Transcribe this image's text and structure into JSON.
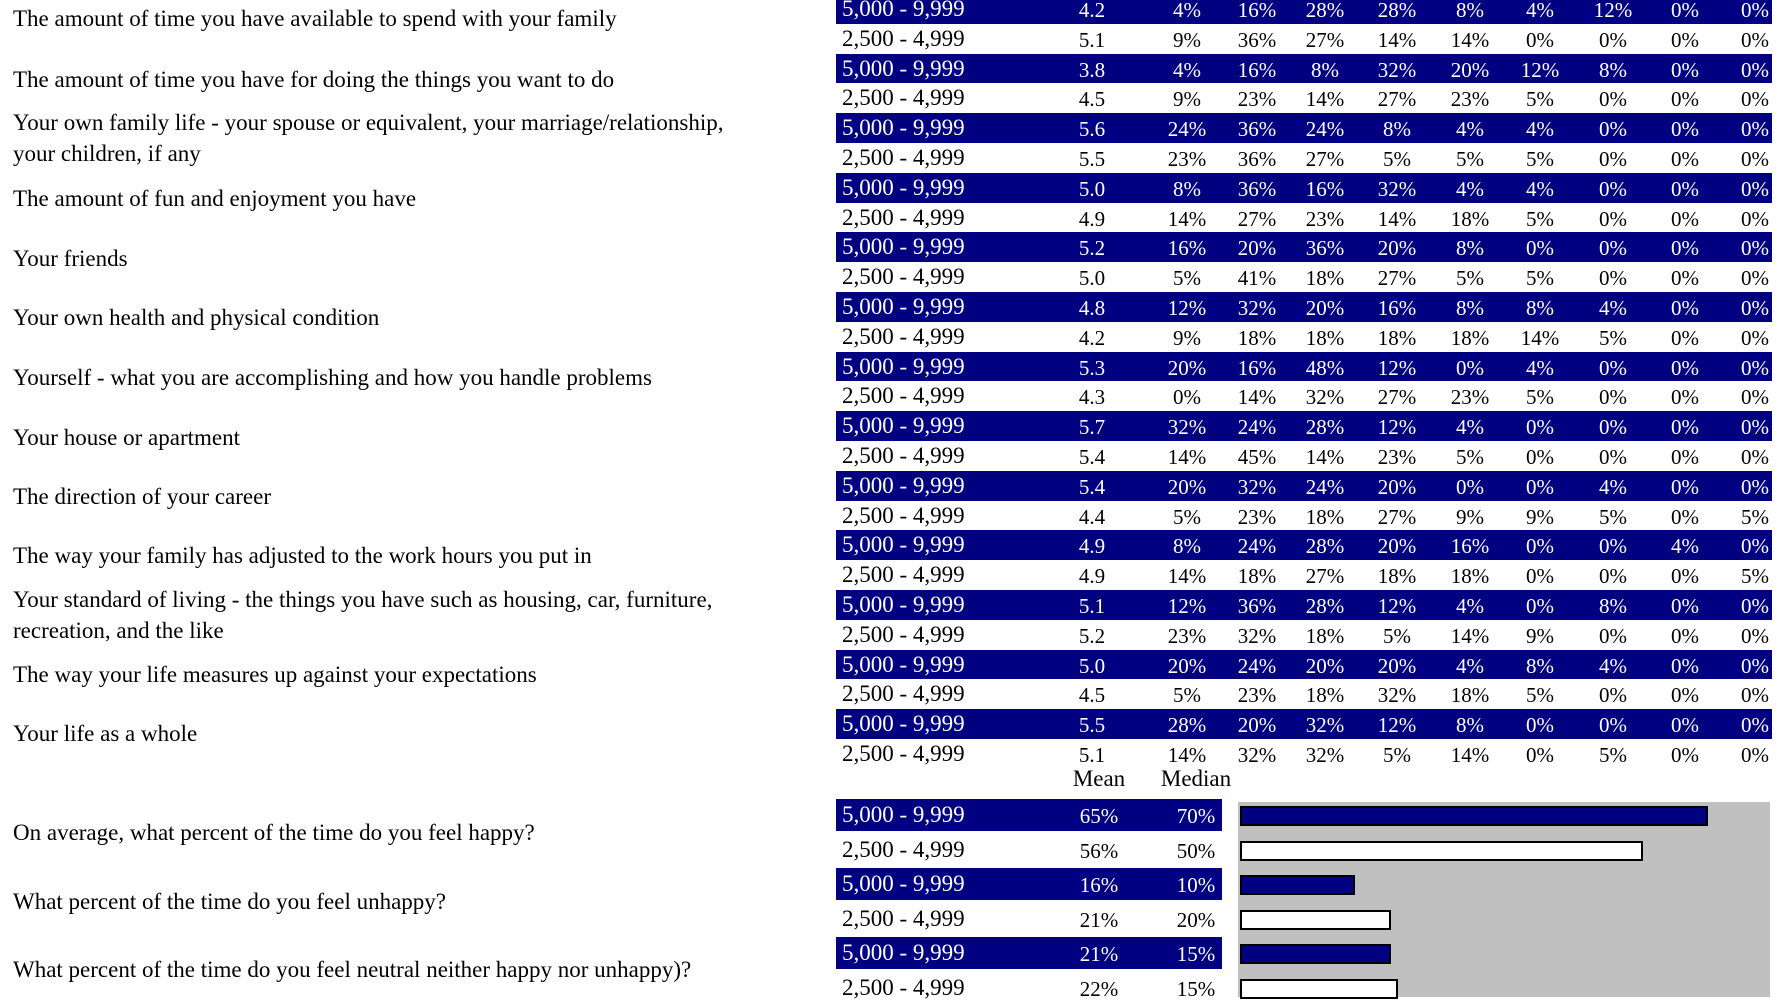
{
  "questions": [
    "The amount of time you have available to spend with your family",
    "The amount of time you have for doing the things you want to do",
    "Your own family life - your spouse or equivalent, your marriage/relationship,",
    "your children, if any",
    "The amount of fun and enjoyment you have",
    "Your friends",
    "Your own health and physical condition",
    "Yourself - what you are accomplishing and how you handle problems",
    "Your house or apartment",
    "The direction of your career",
    "The way your family has adjusted to the work hours you put in",
    "Your standard of living - the things you have such as housing, car, furniture,",
    "recreation, and the like",
    "The way your life measures up against your expectations",
    "Your life as a whole"
  ],
  "rows": [
    [
      "5,000 - 9,999",
      "4.2",
      "4%",
      "16%",
      "28%",
      "28%",
      "8%",
      "4%",
      "12%",
      "0%",
      "0%"
    ],
    [
      "2,500 - 4,999",
      "5.1",
      "9%",
      "36%",
      "27%",
      "14%",
      "14%",
      "0%",
      "0%",
      "0%",
      "0%"
    ],
    [
      "5,000 - 9,999",
      "3.8",
      "4%",
      "16%",
      "8%",
      "32%",
      "20%",
      "12%",
      "8%",
      "0%",
      "0%"
    ],
    [
      "2,500 - 4,999",
      "4.5",
      "9%",
      "23%",
      "14%",
      "27%",
      "23%",
      "5%",
      "0%",
      "0%",
      "0%"
    ],
    [
      "5,000 - 9,999",
      "5.6",
      "24%",
      "36%",
      "24%",
      "8%",
      "4%",
      "4%",
      "0%",
      "0%",
      "0%"
    ],
    [
      "2,500 - 4,999",
      "5.5",
      "23%",
      "36%",
      "27%",
      "5%",
      "5%",
      "5%",
      "0%",
      "0%",
      "0%"
    ],
    [
      "5,000 - 9,999",
      "5.0",
      "8%",
      "36%",
      "16%",
      "32%",
      "4%",
      "4%",
      "0%",
      "0%",
      "0%"
    ],
    [
      "2,500 - 4,999",
      "4.9",
      "14%",
      "27%",
      "23%",
      "14%",
      "18%",
      "5%",
      "0%",
      "0%",
      "0%"
    ],
    [
      "5,000 - 9,999",
      "5.2",
      "16%",
      "20%",
      "36%",
      "20%",
      "8%",
      "0%",
      "0%",
      "0%",
      "0%"
    ],
    [
      "2,500 - 4,999",
      "5.0",
      "5%",
      "41%",
      "18%",
      "27%",
      "5%",
      "5%",
      "0%",
      "0%",
      "0%"
    ],
    [
      "5,000 - 9,999",
      "4.8",
      "12%",
      "32%",
      "20%",
      "16%",
      "8%",
      "8%",
      "4%",
      "0%",
      "0%"
    ],
    [
      "2,500 - 4,999",
      "4.2",
      "9%",
      "18%",
      "18%",
      "18%",
      "18%",
      "14%",
      "5%",
      "0%",
      "0%"
    ],
    [
      "5,000 - 9,999",
      "5.3",
      "20%",
      "16%",
      "48%",
      "12%",
      "0%",
      "4%",
      "0%",
      "0%",
      "0%"
    ],
    [
      "2,500 - 4,999",
      "4.3",
      "0%",
      "14%",
      "32%",
      "27%",
      "23%",
      "5%",
      "0%",
      "0%",
      "0%"
    ],
    [
      "5,000 - 9,999",
      "5.7",
      "32%",
      "24%",
      "28%",
      "12%",
      "4%",
      "0%",
      "0%",
      "0%",
      "0%"
    ],
    [
      "2,500 - 4,999",
      "5.4",
      "14%",
      "45%",
      "14%",
      "23%",
      "5%",
      "0%",
      "0%",
      "0%",
      "0%"
    ],
    [
      "5,000 - 9,999",
      "5.4",
      "20%",
      "32%",
      "24%",
      "20%",
      "0%",
      "0%",
      "4%",
      "0%",
      "0%"
    ],
    [
      "2,500 - 4,999",
      "4.4",
      "5%",
      "23%",
      "18%",
      "27%",
      "9%",
      "9%",
      "5%",
      "0%",
      "5%"
    ],
    [
      "5,000 - 9,999",
      "4.9",
      "8%",
      "24%",
      "28%",
      "20%",
      "16%",
      "0%",
      "0%",
      "4%",
      "0%"
    ],
    [
      "2,500 - 4,999",
      "4.9",
      "14%",
      "18%",
      "27%",
      "18%",
      "18%",
      "0%",
      "0%",
      "0%",
      "5%"
    ],
    [
      "5,000 - 9,999",
      "5.1",
      "12%",
      "36%",
      "28%",
      "12%",
      "4%",
      "0%",
      "8%",
      "0%",
      "0%"
    ],
    [
      "2,500 - 4,999",
      "5.2",
      "23%",
      "32%",
      "18%",
      "5%",
      "14%",
      "9%",
      "0%",
      "0%",
      "0%"
    ],
    [
      "5,000 - 9,999",
      "5.0",
      "20%",
      "24%",
      "20%",
      "20%",
      "4%",
      "8%",
      "4%",
      "0%",
      "0%"
    ],
    [
      "2,500 - 4,999",
      "4.5",
      "5%",
      "23%",
      "18%",
      "32%",
      "18%",
      "5%",
      "0%",
      "0%",
      "0%"
    ],
    [
      "5,000 - 9,999",
      "5.5",
      "28%",
      "20%",
      "32%",
      "12%",
      "8%",
      "0%",
      "0%",
      "0%",
      "0%"
    ],
    [
      "2,500 - 4,999",
      "5.1",
      "14%",
      "32%",
      "32%",
      "5%",
      "14%",
      "0%",
      "5%",
      "0%",
      "0%"
    ]
  ],
  "happy": {
    "mean_header": "Mean",
    "median_header": "Median",
    "questions": [
      "On average, what percent of the time do you feel happy?",
      "What percent of the time do you feel unhappy?",
      "What percent of the time do you feel neutral neither happy nor unhappy)?"
    ],
    "rows": [
      {
        "group": "5,000 - 9,999",
        "mean": "65%",
        "median": "70%",
        "value": 65
      },
      {
        "group": "2,500 - 4,999",
        "mean": "56%",
        "median": "50%",
        "value": 56
      },
      {
        "group": "5,000 - 9,999",
        "mean": "16%",
        "median": "10%",
        "value": 16
      },
      {
        "group": "2,500 - 4,999",
        "mean": "21%",
        "median": "20%",
        "value": 21
      },
      {
        "group": "5,000 - 9,999",
        "mean": "21%",
        "median": "15%",
        "value": 21
      },
      {
        "group": "2,500 - 4,999",
        "mean": "22%",
        "median": "15%",
        "value": 22
      }
    ]
  },
  "colors": {
    "blue": "#000080",
    "panel": "#c0c0c0"
  }
}
